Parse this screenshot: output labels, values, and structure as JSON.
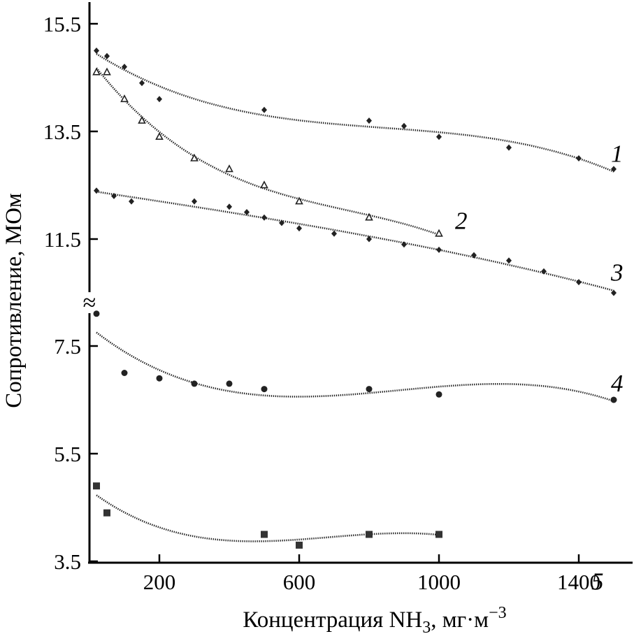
{
  "chart_data": {
    "type": "scatter",
    "xlabel": "Концентрация NH",
    "xlabel_sub": "3",
    "xlabel_unit": ", мг·м",
    "xlabel_sup": "−3",
    "ylabel": "Сопротивление, МОм",
    "x_ticks": [
      "200",
      "600",
      "1000",
      "1400"
    ],
    "x_tick_values": [
      200,
      600,
      1000,
      1400
    ],
    "y_ticks": [
      "15.5",
      "13.5",
      "11.5",
      "7.5",
      "5.5",
      "3.5"
    ],
    "y_axis_break_symbol": "≈",
    "y_axis_break": [
      10.5,
      8.5
    ],
    "xlim": [
      0,
      1540
    ],
    "ylim_upper": [
      10.5,
      15.8
    ],
    "ylim_lower": [
      3.5,
      8.5
    ],
    "grid": false,
    "legend": "none",
    "series": [
      {
        "name": "1",
        "marker": "diamond",
        "x": [
          20,
          50,
          100,
          150,
          200,
          500,
          800,
          900,
          1000,
          1200,
          1400,
          1500
        ],
        "y": [
          15.0,
          14.9,
          14.7,
          14.4,
          14.1,
          13.9,
          13.7,
          13.6,
          13.4,
          13.2,
          13.0,
          12.8
        ]
      },
      {
        "name": "2",
        "marker": "open-triangle",
        "x": [
          20,
          50,
          100,
          150,
          200,
          300,
          400,
          500,
          600,
          800,
          1000
        ],
        "y": [
          14.6,
          14.6,
          14.1,
          13.7,
          13.4,
          13.0,
          12.8,
          12.5,
          12.2,
          11.9,
          11.6
        ],
        "label_x": 1030
      },
      {
        "name": "3",
        "marker": "diamond",
        "x": [
          20,
          70,
          120,
          300,
          400,
          450,
          500,
          550,
          600,
          700,
          800,
          900,
          1000,
          1100,
          1200,
          1300,
          1400,
          1500
        ],
        "y": [
          12.4,
          12.3,
          12.2,
          12.2,
          12.1,
          12.0,
          11.9,
          11.8,
          11.7,
          11.6,
          11.5,
          11.4,
          11.3,
          11.2,
          11.1,
          10.9,
          10.7,
          10.5
        ]
      },
      {
        "name": "4",
        "marker": "circle",
        "x": [
          20,
          100,
          200,
          300,
          400,
          500,
          800,
          1000,
          1500
        ],
        "y": [
          8.1,
          7.0,
          6.9,
          6.8,
          6.8,
          6.7,
          6.7,
          6.6,
          6.5
        ]
      },
      {
        "name": "5",
        "marker": "square",
        "x": [
          20,
          50,
          500,
          600,
          800,
          1000
        ],
        "y": [
          4.9,
          4.4,
          4.0,
          3.8,
          4.0,
          4.0
        ],
        "label_x": 1420
      }
    ]
  }
}
